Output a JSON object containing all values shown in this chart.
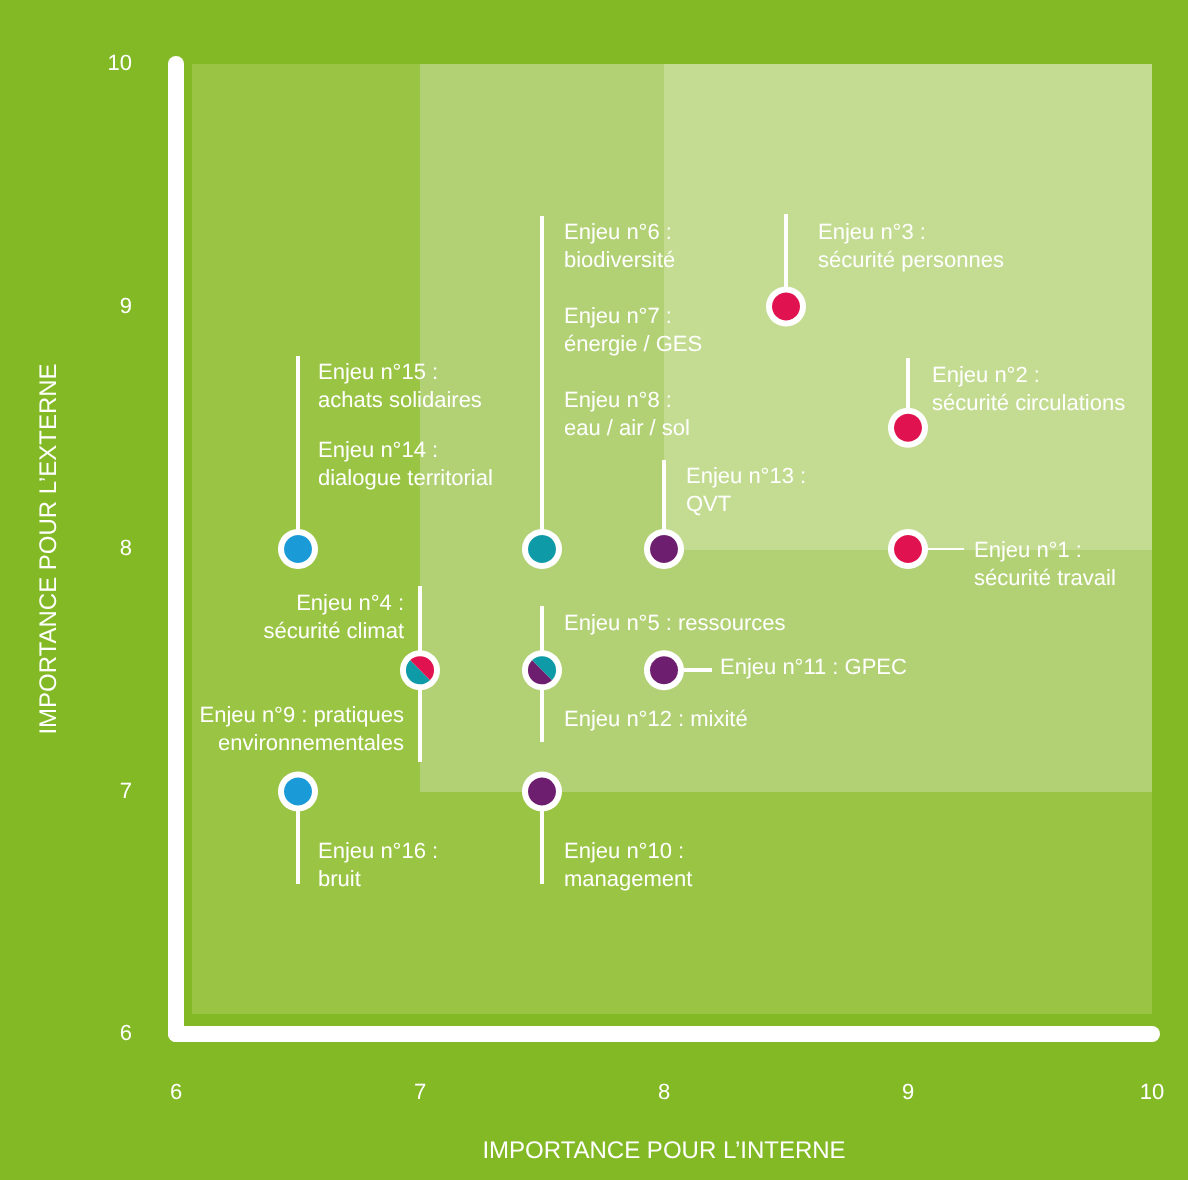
{
  "chart_data": {
    "type": "scatter",
    "xlabel": "IMPORTANCE POUR L’INTERNE",
    "ylabel": "IMPORTANCE POUR L’EXTERNE",
    "xlim": [
      6,
      10
    ],
    "xticks": [
      6,
      7,
      8,
      9,
      10
    ],
    "ylim": [
      6,
      10
    ],
    "yticks": [
      6,
      7,
      8,
      9,
      10
    ],
    "grid": false,
    "marker": "circle",
    "series": [
      {
        "color": "#e0124f",
        "x": [
          9,
          9,
          8.5,
          7
        ],
        "values": [
          8,
          8.5,
          9,
          7.5
        ]
      },
      {
        "color": "#0e9aa7",
        "x": [
          7.5,
          7,
          7.5
        ],
        "values": [
          8,
          7.5,
          7.5
        ]
      },
      {
        "color": "#6e1e6e",
        "x": [
          8,
          8,
          7.5,
          7.5
        ],
        "values": [
          8,
          7.5,
          7,
          7.5
        ]
      },
      {
        "color": "#1a9ad6",
        "x": [
          6.5,
          6.5
        ],
        "values": [
          8,
          7
        ]
      }
    ],
    "annotations": [
      {
        "text": "Enjeu n°1 :\nsécurité travail",
        "x": 9,
        "y": 8
      },
      {
        "text": "Enjeu n°2 :\nsécurité circulations",
        "x": 9,
        "y": 8.5
      },
      {
        "text": "Enjeu n°3 :\nsécurité personnes",
        "x": 8.5,
        "y": 9
      },
      {
        "text": "Enjeu n°4 :\nsécurité climat",
        "x": 7,
        "y": 7.5
      },
      {
        "text": "Enjeu n°5 : ressources",
        "x": 7.5,
        "y": 7.5
      },
      "Enjeu n°6 :\nbiodiversité",
      "Enjeu n°7 :\nénergie / GES",
      "Enjeu n°8 :\neau / air / sol",
      {
        "text": "Enjeu n°9 : pratiques\nenvironnementales",
        "x": 7,
        "y": 7.5
      },
      {
        "text": "Enjeu n°10 :\nmanagement",
        "x": 7.5,
        "y": 7
      },
      {
        "text": "Enjeu n°11 : GPEC",
        "x": 8,
        "y": 7.5
      },
      {
        "text": "Enjeu n°12 : mixité",
        "x": 7.5,
        "y": 7.5
      },
      {
        "text": "Enjeu n°13 :\nQVT",
        "x": 8,
        "y": 8
      },
      {
        "text": "Enjeu n°14 :\ndialogue territorial",
        "x": 6.5,
        "y": 8
      },
      "Enjeu n°15 :\nachats solidaires",
      {
        "text": "Enjeu n°16 :\nbruit",
        "x": 6.5,
        "y": 7
      }
    ]
  }
}
